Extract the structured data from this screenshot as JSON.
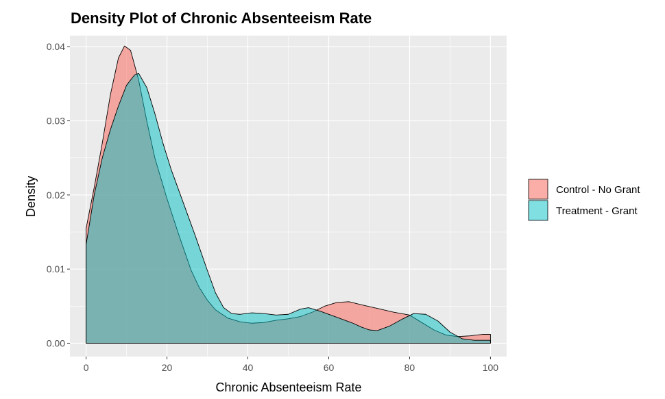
{
  "chart_data": {
    "type": "area",
    "title": "Density Plot of Chronic Absenteeism Rate",
    "xlabel": "Chronic Absenteeism Rate",
    "ylabel": "Density",
    "xlim": [
      -4,
      104
    ],
    "ylim": [
      -0.0018,
      0.0415
    ],
    "x_ticks": [
      0,
      20,
      40,
      60,
      80,
      100
    ],
    "x_tick_labels": [
      "0",
      "20",
      "40",
      "60",
      "80",
      "100"
    ],
    "y_ticks": [
      0,
      0.01,
      0.02,
      0.03,
      0.04
    ],
    "y_tick_labels": [
      "0.00",
      "0.01",
      "0.02",
      "0.03",
      "0.04"
    ],
    "grid": true,
    "legend_position": "right",
    "series": [
      {
        "name": "Control - No Grant",
        "color": "#F8766D",
        "fill_opacity": 0.6,
        "points": [
          [
            0,
            0.0155
          ],
          [
            2,
            0.021
          ],
          [
            4,
            0.027
          ],
          [
            6,
            0.0335
          ],
          [
            8,
            0.0385
          ],
          [
            9.5,
            0.0401
          ],
          [
            11,
            0.0395
          ],
          [
            13,
            0.0355
          ],
          [
            15,
            0.03
          ],
          [
            17,
            0.025
          ],
          [
            20,
            0.0195
          ],
          [
            23,
            0.0145
          ],
          [
            26,
            0.0098
          ],
          [
            28,
            0.0075
          ],
          [
            30,
            0.0058
          ],
          [
            32,
            0.0045
          ],
          [
            35,
            0.0034
          ],
          [
            38,
            0.0029
          ],
          [
            41,
            0.0027
          ],
          [
            44,
            0.0028
          ],
          [
            47,
            0.0031
          ],
          [
            50,
            0.0033
          ],
          [
            53,
            0.0036
          ],
          [
            56,
            0.0042
          ],
          [
            59,
            0.005
          ],
          [
            62,
            0.0055
          ],
          [
            65,
            0.0056
          ],
          [
            68,
            0.0052
          ],
          [
            72,
            0.0047
          ],
          [
            76,
            0.0042
          ],
          [
            80,
            0.0038
          ],
          [
            83,
            0.0028
          ],
          [
            86,
            0.0018
          ],
          [
            89,
            0.0011
          ],
          [
            92,
            0.0009
          ],
          [
            95,
            0.001
          ],
          [
            98,
            0.0012
          ],
          [
            100,
            0.0012
          ]
        ]
      },
      {
        "name": "Treatment - Grant",
        "color": "#00BFC4",
        "fill_opacity": 0.5,
        "points": [
          [
            0,
            0.0133
          ],
          [
            2,
            0.02
          ],
          [
            4,
            0.025
          ],
          [
            6,
            0.0288
          ],
          [
            8,
            0.032
          ],
          [
            10,
            0.0348
          ],
          [
            12,
            0.0362
          ],
          [
            13,
            0.0364
          ],
          [
            15,
            0.0345
          ],
          [
            17,
            0.031
          ],
          [
            19,
            0.027
          ],
          [
            21,
            0.0235
          ],
          [
            24,
            0.019
          ],
          [
            27,
            0.0145
          ],
          [
            30,
            0.0098
          ],
          [
            32,
            0.0068
          ],
          [
            34,
            0.0048
          ],
          [
            36,
            0.004
          ],
          [
            38,
            0.0039
          ],
          [
            41,
            0.0041
          ],
          [
            44,
            0.004
          ],
          [
            47,
            0.0038
          ],
          [
            50,
            0.0039
          ],
          [
            53,
            0.0046
          ],
          [
            55,
            0.0048
          ],
          [
            58,
            0.0043
          ],
          [
            62,
            0.0035
          ],
          [
            66,
            0.0027
          ],
          [
            68,
            0.0022
          ],
          [
            70,
            0.0018
          ],
          [
            72,
            0.0017
          ],
          [
            75,
            0.0023
          ],
          [
            78,
            0.0032
          ],
          [
            81,
            0.004
          ],
          [
            84,
            0.0039
          ],
          [
            87,
            0.003
          ],
          [
            90,
            0.0015
          ],
          [
            93,
            0.0006
          ],
          [
            96,
            0.0004
          ],
          [
            100,
            0.0004
          ]
        ]
      }
    ]
  }
}
